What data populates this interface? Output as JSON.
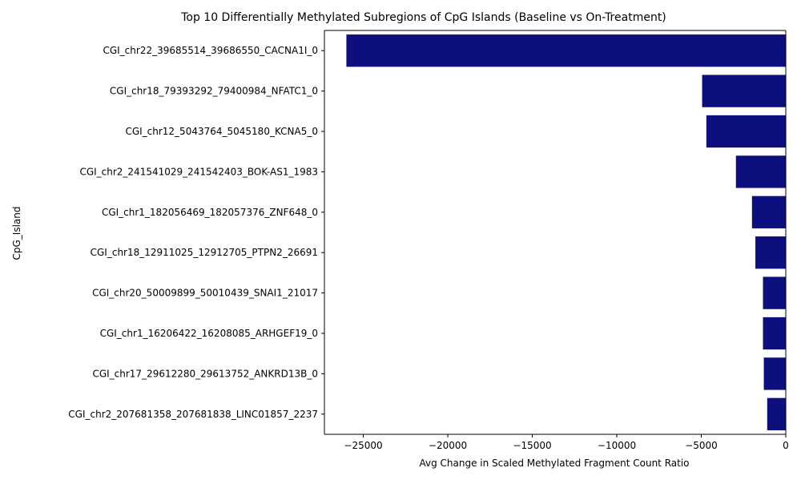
{
  "chart_data": {
    "type": "bar",
    "orientation": "horizontal",
    "title": "Top 10 Differentially Methylated Subregions of CpG Islands (Baseline vs On-Treatment)",
    "xlabel": "Avg Change in Scaled Methylated Fragment Count Ratio",
    "ylabel": "CpG_Island",
    "categories": [
      "CGI_chr22_39685514_39686550_CACNA1I_0",
      "CGI_chr18_79393292_79400984_NFATC1_0",
      "CGI_chr12_5043764_5045180_KCNA5_0",
      "CGI_chr2_241541029_241542403_BOK-AS1_1983",
      "CGI_chr1_182056469_182057376_ZNF648_0",
      "CGI_chr18_12911025_12912705_PTPN2_26691",
      "CGI_chr20_50009899_50010439_SNAI1_21017",
      "CGI_chr1_16206422_16208085_ARHGEF19_0",
      "CGI_chr17_29612280_29613752_ANKRD13B_0",
      "CGI_chr2_207681358_207681838_LINC01857_2237"
    ],
    "values": [
      -26000,
      -4950,
      -4700,
      -2950,
      -2000,
      -1800,
      -1350,
      -1350,
      -1300,
      -1100
    ],
    "xlim": [
      -27300,
      0
    ],
    "xticks": [
      -25000,
      -20000,
      -15000,
      -10000,
      -5000,
      0
    ],
    "xtick_labels": [
      "−25000",
      "−20000",
      "−15000",
      "−10000",
      "−5000",
      "0"
    ],
    "bar_color": "#0d0f7e",
    "grid": false,
    "legend": "none"
  }
}
